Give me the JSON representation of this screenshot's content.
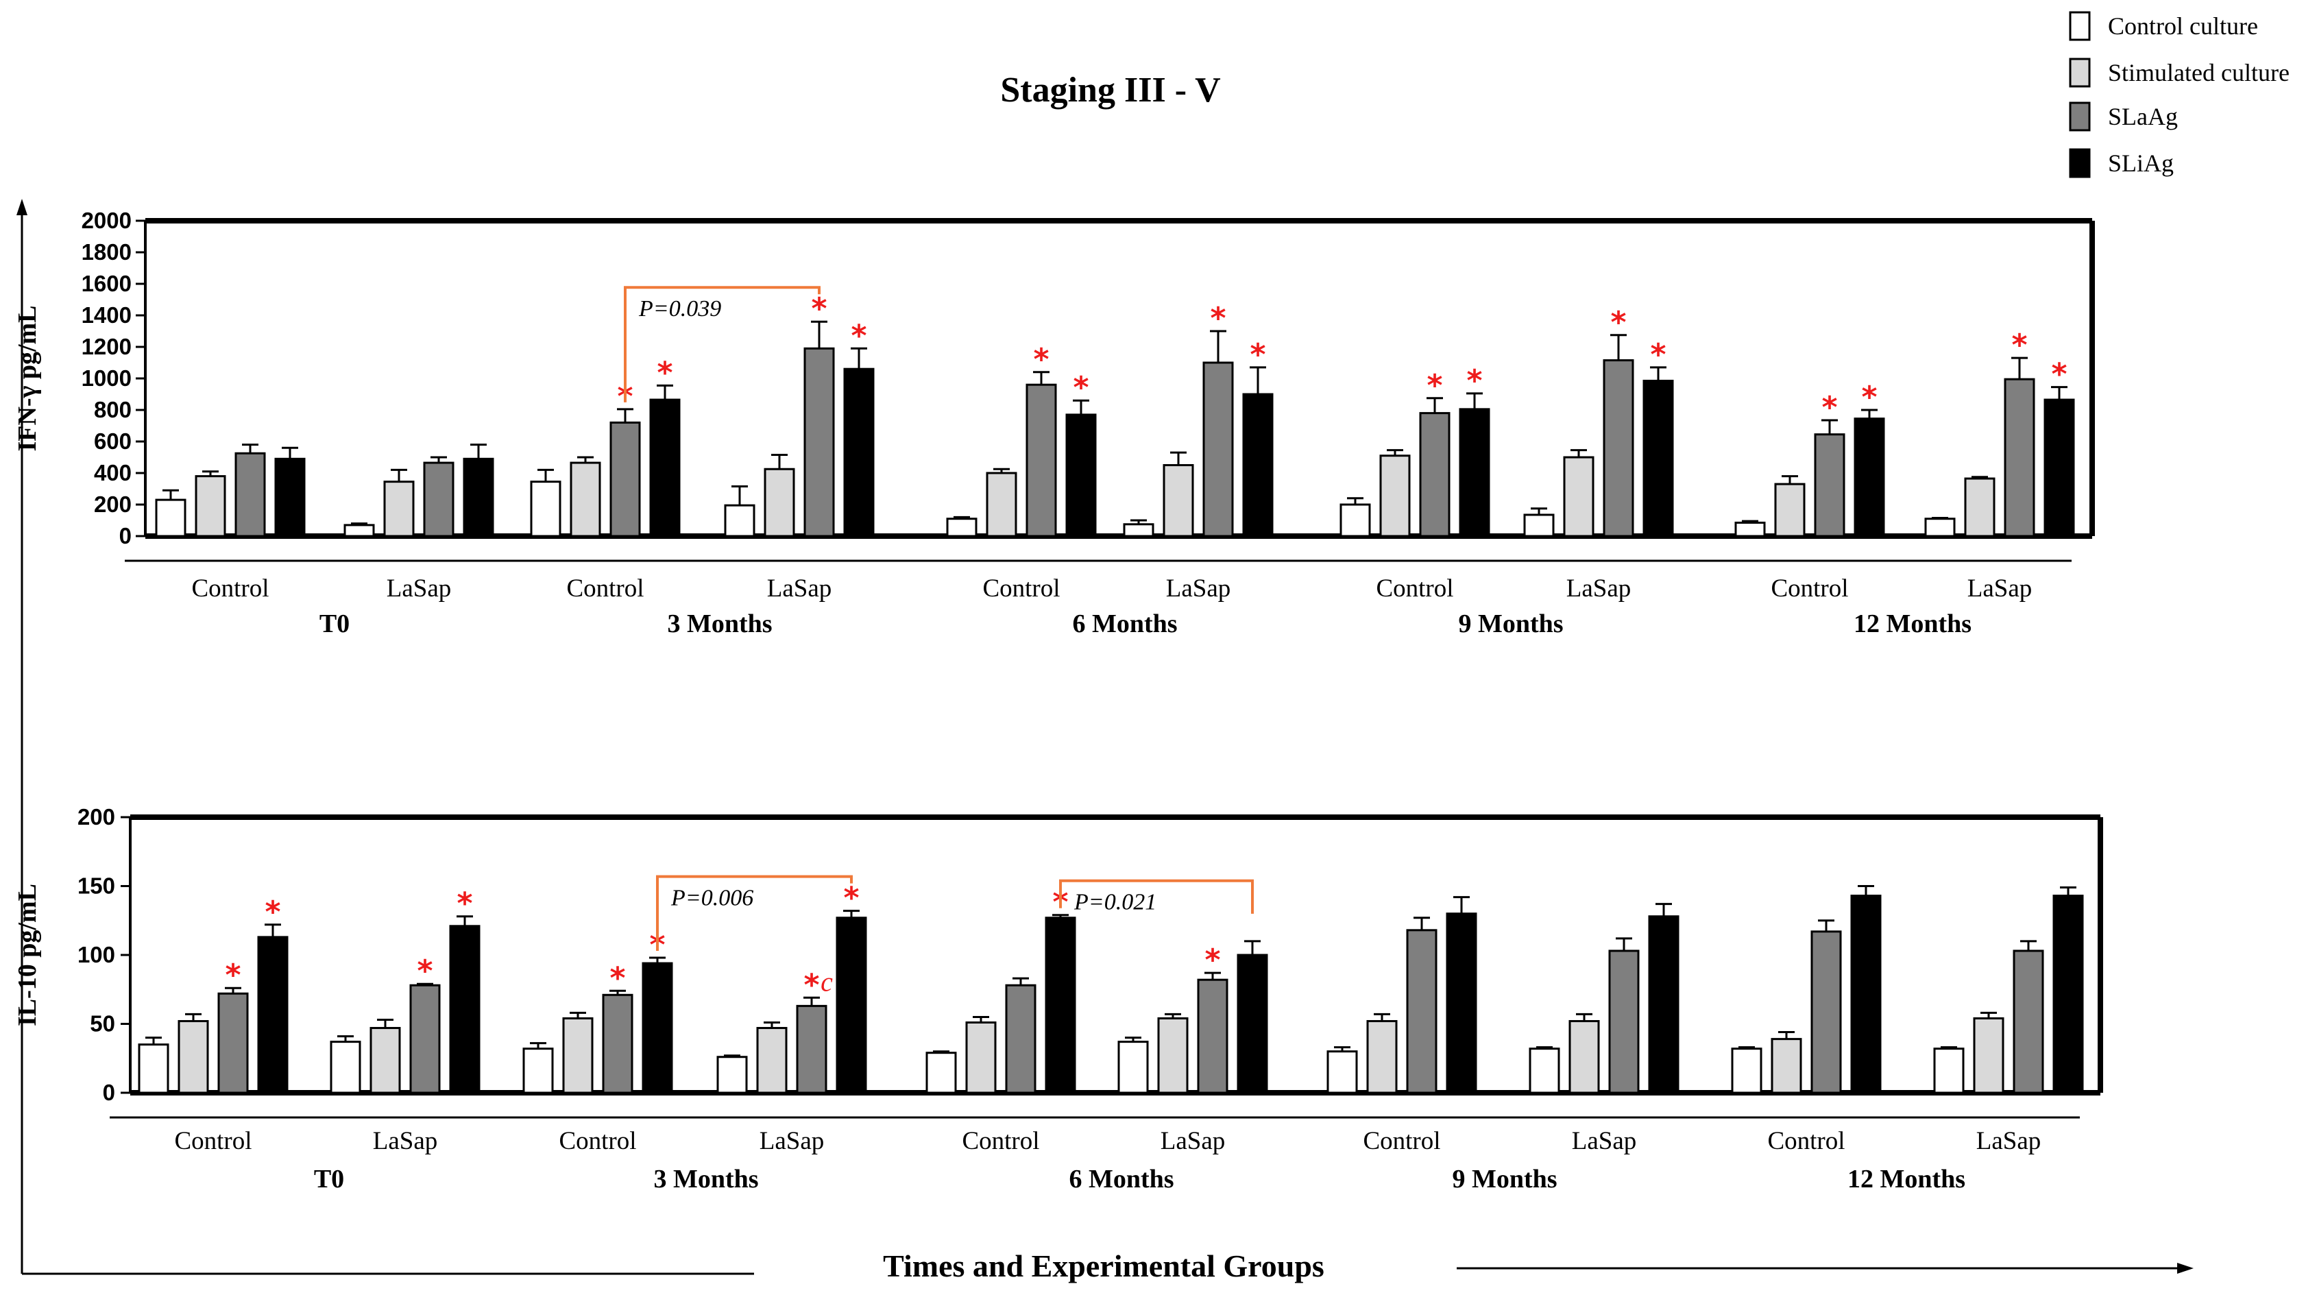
{
  "title": "Staging III - V",
  "legend": {
    "items": [
      {
        "label": "Control culture",
        "color": "#ffffff"
      },
      {
        "label": "Stimulated culture",
        "color": "#d9d9d9"
      },
      {
        "label": "SLaAg",
        "color": "#7f7f7f"
      },
      {
        "label": "SLiAg",
        "color": "#000000"
      }
    ]
  },
  "x_axis_title": "Times and Experimental Groups",
  "chart_data": [
    {
      "type": "bar",
      "id": "ifn",
      "ylabel": "IFN-γ pg/mL",
      "ylim": [
        0,
        2000
      ],
      "yticks": [
        0,
        200,
        400,
        600,
        800,
        1000,
        1200,
        1400,
        1600,
        1800,
        2000
      ],
      "times": [
        "T0",
        "3 Months",
        "6 Months",
        "9 Months",
        "12 Months"
      ],
      "groups": [
        "Control",
        "LaSap",
        "Control",
        "LaSap",
        "Control",
        "LaSap",
        "Control",
        "LaSap",
        "Control",
        "LaSap"
      ],
      "series": [
        {
          "name": "Control culture",
          "values": [
            230,
            70,
            345,
            195,
            110,
            75,
            200,
            135,
            85,
            110
          ],
          "errors": [
            60,
            10,
            75,
            120,
            10,
            25,
            40,
            40,
            10,
            5
          ]
        },
        {
          "name": "Stimulated culture",
          "values": [
            380,
            345,
            465,
            425,
            400,
            450,
            510,
            500,
            330,
            365
          ],
          "errors": [
            30,
            75,
            35,
            90,
            25,
            80,
            35,
            45,
            50,
            10
          ]
        },
        {
          "name": "SLaAg",
          "values": [
            525,
            465,
            720,
            1190,
            960,
            1100,
            780,
            1115,
            645,
            995
          ],
          "errors": [
            55,
            35,
            85,
            170,
            80,
            200,
            95,
            160,
            90,
            135
          ]
        },
        {
          "name": "SLiAg",
          "values": [
            490,
            490,
            865,
            1060,
            770,
            900,
            805,
            985,
            745,
            865
          ],
          "errors": [
            70,
            90,
            90,
            130,
            90,
            170,
            100,
            85,
            55,
            80
          ]
        }
      ],
      "significance": [
        {
          "group": 2,
          "series": [
            2,
            3
          ],
          "label": "*"
        },
        {
          "group": 3,
          "series": [
            2,
            3
          ],
          "label": "*"
        },
        {
          "group": 4,
          "series": [
            2,
            3
          ],
          "label": "*"
        },
        {
          "group": 5,
          "series": [
            2,
            3
          ],
          "label": "*"
        },
        {
          "group": 6,
          "series": [
            2,
            3
          ],
          "label": "*"
        },
        {
          "group": 7,
          "series": [
            2,
            3
          ],
          "label": "*"
        },
        {
          "group": 8,
          "series": [
            2,
            3
          ],
          "label": "*"
        },
        {
          "group": 9,
          "series": [
            2,
            3
          ],
          "label": "*"
        }
      ],
      "comparisons": [
        {
          "from_group": 2,
          "from_series": 2,
          "to_group": 3,
          "to_series": 2,
          "label": "P=0.039"
        }
      ]
    },
    {
      "type": "bar",
      "id": "il10",
      "ylabel": "IL-10 pg/mL",
      "ylim": [
        0,
        200
      ],
      "yticks": [
        0,
        50,
        100,
        150,
        200
      ],
      "times": [
        "T0",
        "3 Months",
        "6 Months",
        "9 Months",
        "12 Months"
      ],
      "groups": [
        "Control",
        "LaSap",
        "Control",
        "LaSap",
        "Control",
        "LaSap",
        "Control",
        "LaSap",
        "Control",
        "LaSap"
      ],
      "series": [
        {
          "name": "Control culture",
          "values": [
            35,
            37,
            32,
            26,
            29,
            37,
            30,
            32,
            32,
            32
          ],
          "errors": [
            5,
            4,
            4,
            1,
            1,
            3,
            3,
            1,
            1,
            1
          ]
        },
        {
          "name": "Stimulated culture",
          "values": [
            52,
            47,
            54,
            47,
            51,
            54,
            52,
            52,
            39,
            54
          ],
          "errors": [
            5,
            6,
            4,
            4,
            4,
            3,
            5,
            5,
            5,
            4
          ]
        },
        {
          "name": "SLaAg",
          "values": [
            72,
            78,
            71,
            63,
            78,
            82,
            118,
            103,
            117,
            103
          ],
          "errors": [
            4,
            1,
            3,
            6,
            5,
            5,
            9,
            9,
            8,
            7
          ]
        },
        {
          "name": "SLiAg",
          "values": [
            113,
            121,
            94,
            127,
            127,
            100,
            130,
            128,
            143,
            143
          ],
          "errors": [
            9,
            7,
            4,
            5,
            2,
            10,
            12,
            9,
            7,
            6
          ]
        }
      ],
      "significance": [
        {
          "group": 0,
          "series": [
            2,
            3
          ],
          "label": "*"
        },
        {
          "group": 1,
          "series": [
            2,
            3
          ],
          "label": "*"
        },
        {
          "group": 2,
          "series": [
            2,
            3
          ],
          "label": "*"
        },
        {
          "group": 3,
          "series": [
            2,
            3
          ],
          "label": "*"
        },
        {
          "group": 4,
          "series": [
            3
          ],
          "label": "*"
        },
        {
          "group": 5,
          "series": [
            2
          ],
          "label": "*"
        }
      ],
      "extra_marks": [
        {
          "group": 3,
          "series": 2,
          "label": "c"
        }
      ],
      "comparisons": [
        {
          "from_group": 2,
          "from_series": 3,
          "to_group": 3,
          "to_series": 3,
          "label": "P=0.006"
        },
        {
          "from_group": 4,
          "from_series": 3,
          "to_group": 5,
          "to_series": 3,
          "label": "P=0.021"
        }
      ]
    }
  ]
}
